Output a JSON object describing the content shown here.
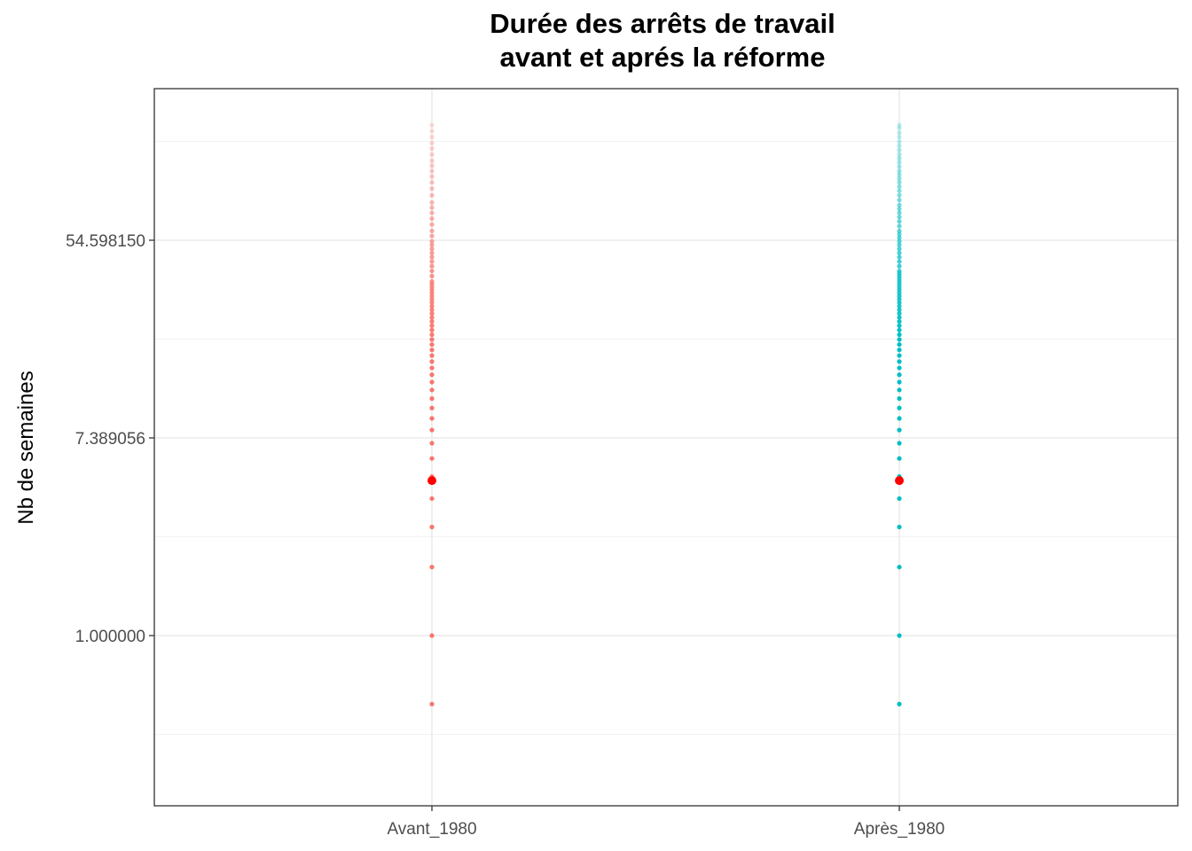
{
  "chart_data": {
    "type": "scatter",
    "title": [
      "Durée des arrêts de travail",
      "avant et aprés la réforme"
    ],
    "xlabel": "",
    "ylabel": "Nb de semaines",
    "categories": [
      "Avant_1980",
      "Après_1980"
    ],
    "y_scale": "log",
    "ylim": [
      0.33,
      190
    ],
    "y_ticks": [
      {
        "value": 1.0,
        "label": "1.000000"
      },
      {
        "value": 7.389056,
        "label": "7.389056"
      },
      {
        "value": 54.59815,
        "label": "54.598150"
      }
    ],
    "y_minor_ticks": [
      0.3679,
      2.7183,
      20.0855,
      148.4132
    ],
    "grid": true,
    "legend": "none",
    "colors": {
      "Avant_1980": "#F8766D",
      "Après_1980": "#00BFC4",
      "highlight": "#FF0000"
    },
    "series": [
      {
        "category": "Avant_1980",
        "values": [
          0.5,
          1,
          2,
          3,
          4,
          5,
          6,
          7,
          8,
          9,
          10,
          11,
          12,
          13,
          14,
          15,
          16,
          17,
          18,
          19,
          20,
          21,
          22,
          23,
          24,
          25,
          26,
          27,
          28,
          29,
          30,
          31,
          32,
          33,
          34,
          35,
          36,
          38,
          40,
          42,
          44,
          46,
          48,
          50,
          52,
          54,
          57,
          60,
          64,
          68,
          72,
          76,
          80,
          86,
          92,
          98,
          104,
          110,
          116,
          122,
          130,
          138,
          146,
          155,
          165,
          175
        ]
      },
      {
        "category": "Après_1980",
        "values": [
          0.5,
          1,
          2,
          3,
          4,
          5,
          6,
          7,
          8,
          9,
          10,
          11,
          12,
          13,
          14,
          15,
          16,
          17,
          18,
          19,
          20,
          21,
          22,
          23,
          24,
          25,
          26,
          27,
          28,
          29,
          30,
          31,
          32,
          33,
          34,
          35,
          36,
          37,
          38,
          39,
          40,
          42,
          44,
          46,
          48,
          50,
          52,
          54,
          56,
          58,
          60,
          63,
          66,
          69,
          72,
          75,
          78,
          82,
          86,
          90,
          94,
          98,
          102,
          106,
          110,
          115,
          120,
          125,
          130,
          136,
          142,
          148,
          155,
          162,
          170,
          175
        ]
      }
    ],
    "highlight_points": [
      {
        "category": "Avant_1980",
        "value": 4.8
      },
      {
        "category": "Après_1980",
        "value": 4.8
      }
    ]
  }
}
